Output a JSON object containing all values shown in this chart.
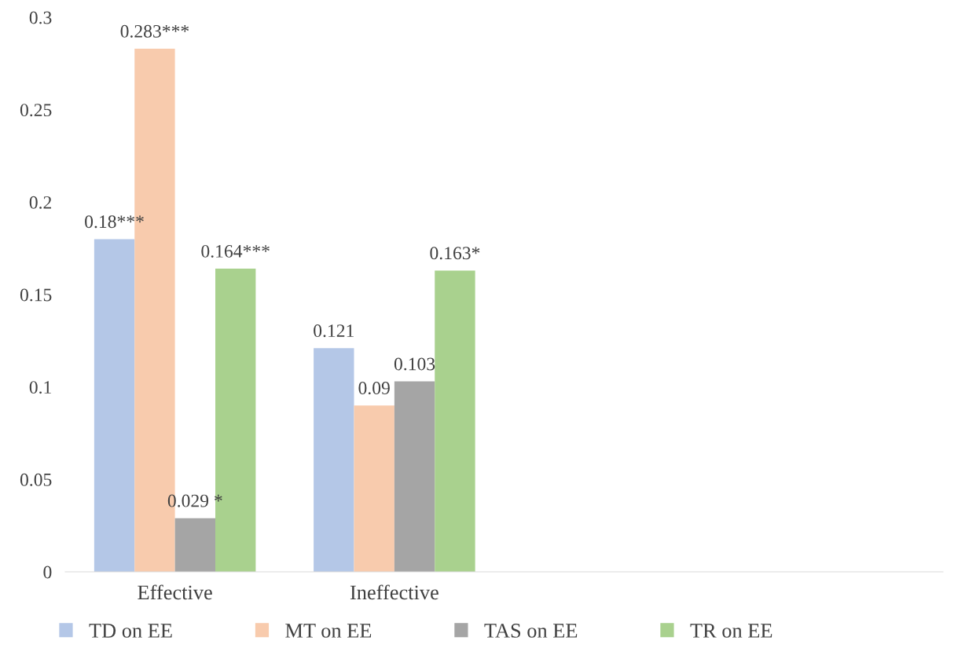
{
  "chart_data": {
    "type": "bar",
    "categories": [
      "Effective",
      "Ineffective",
      null,
      null
    ],
    "series": [
      {
        "name": "TD on EE",
        "color": "#b4c7e7",
        "values": [
          0.18,
          0.121,
          null,
          null
        ],
        "value_labels": [
          "0.18***",
          "0.121",
          null,
          null
        ]
      },
      {
        "name": "MT on EE",
        "color": "#f8cbad",
        "values": [
          0.283,
          0.09,
          null,
          null
        ],
        "value_labels": [
          "0.283***",
          "0.09",
          null,
          null
        ]
      },
      {
        "name": "TAS on EE",
        "color": "#a5a5a5",
        "values": [
          0.029,
          0.103,
          null,
          null
        ],
        "value_labels": [
          "0.029 *",
          "0.103",
          null,
          null
        ]
      },
      {
        "name": "TR on EE",
        "color": "#a9d18e",
        "values": [
          0.164,
          0.163,
          null,
          null
        ],
        "value_labels": [
          "0.164***",
          "0.163*",
          null,
          null
        ]
      }
    ],
    "ylim": [
      0,
      0.3
    ],
    "yticks": [
      0,
      0.05,
      0.1,
      0.15,
      0.2,
      0.25,
      0.3
    ],
    "grid": false,
    "legend": "bottom"
  }
}
